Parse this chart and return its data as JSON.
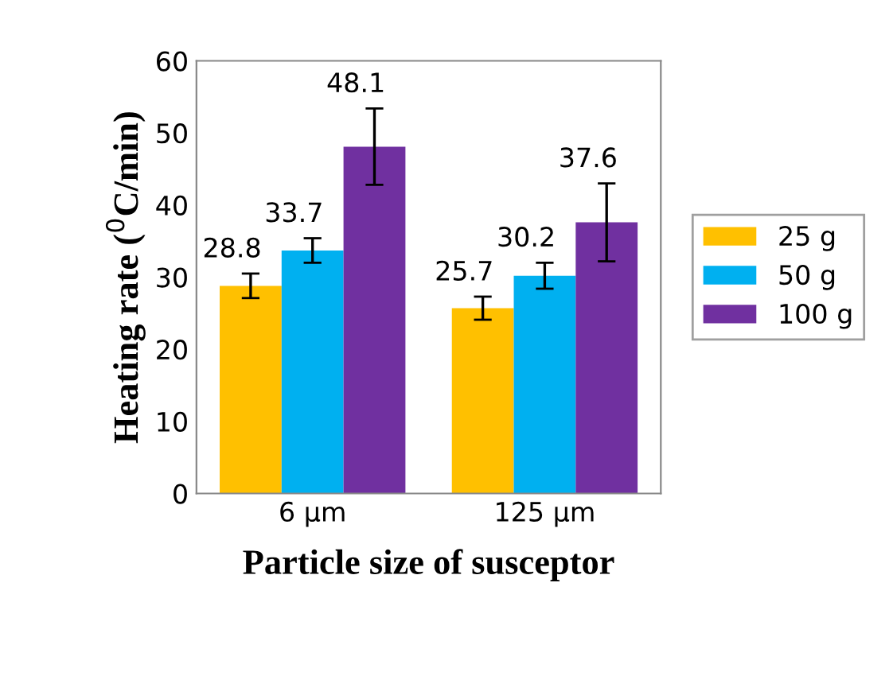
{
  "chart_data": {
    "type": "bar",
    "xlabel": "Particle size of susceptor",
    "ylabel": "Heating rate ($^{0}$C/min)",
    "categories": [
      "6 µm",
      "125 µm"
    ],
    "series": [
      {
        "name": "25 g",
        "color": "#ffc000",
        "values": [
          28.8,
          25.7
        ],
        "errors": [
          1.7,
          1.6
        ]
      },
      {
        "name": "50 g",
        "color": "#00b0f0",
        "values": [
          33.7,
          30.2
        ],
        "errors": [
          1.7,
          1.8
        ]
      },
      {
        "name": "100 g",
        "color": "#7030a0",
        "values": [
          48.1,
          37.6
        ],
        "errors": [
          5.3,
          5.4
        ]
      }
    ],
    "ylim": [
      0,
      60
    ],
    "yticks": [
      0,
      10,
      20,
      30,
      40,
      50,
      60
    ],
    "data_labels": true,
    "legend": "right",
    "grid": false
  }
}
